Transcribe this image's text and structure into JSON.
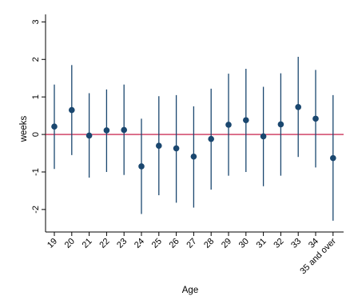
{
  "chart_data": {
    "type": "scatter",
    "xlabel": "Age",
    "ylabel": "weeks",
    "ylim": [
      -2.6,
      3.2
    ],
    "yticks": [
      -2,
      -1,
      0,
      1,
      2,
      3
    ],
    "ytick_labels": [
      "-2",
      "-1",
      "0",
      "1",
      "2",
      "3"
    ],
    "reference_line": 0,
    "grid": false,
    "categories": [
      "19",
      "20",
      "21",
      "22",
      "23",
      "24",
      "25",
      "26",
      "27",
      "28",
      "29",
      "30",
      "31",
      "32",
      "33",
      "34",
      "35 and over"
    ],
    "estimate": [
      0.21,
      0.65,
      -0.03,
      0.11,
      0.12,
      -0.85,
      -0.3,
      -0.37,
      -0.59,
      -0.12,
      0.26,
      0.38,
      -0.05,
      0.27,
      0.73,
      0.42,
      -0.63
    ],
    "ci_low": [
      -0.92,
      -0.55,
      -1.15,
      -1.0,
      -1.08,
      -2.12,
      -1.62,
      -1.82,
      -1.95,
      -1.47,
      -1.1,
      -1.0,
      -1.38,
      -1.1,
      -0.6,
      -0.88,
      -2.3
    ],
    "ci_high": [
      1.33,
      1.85,
      1.1,
      1.2,
      1.33,
      0.42,
      1.02,
      1.05,
      0.75,
      1.22,
      1.62,
      1.75,
      1.27,
      1.63,
      2.07,
      1.72,
      1.05
    ],
    "colors": {
      "marker": "#1a476f",
      "ci": "#1a476f",
      "reference": "#c10534",
      "axis": "#000000"
    }
  }
}
